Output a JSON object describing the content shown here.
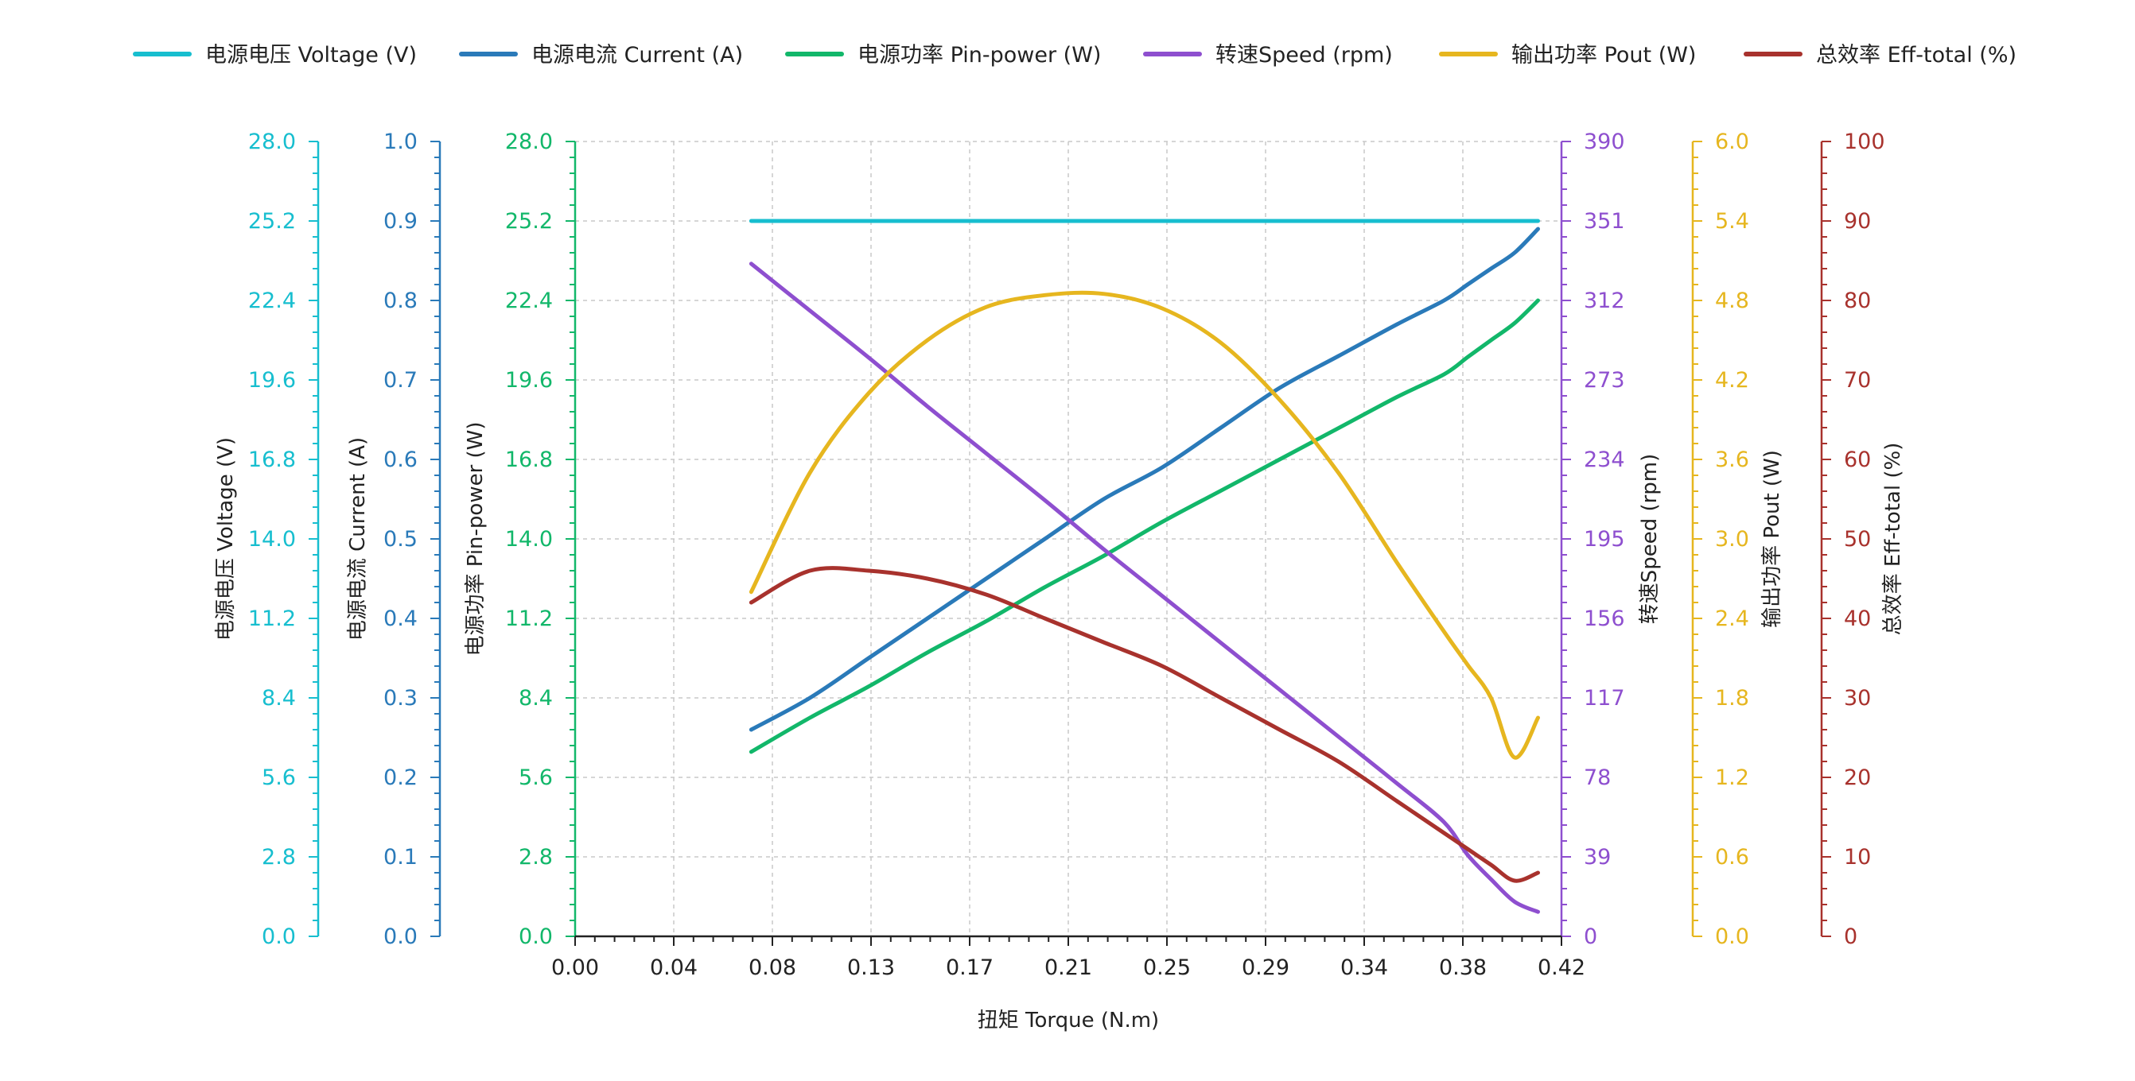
{
  "chart_data": {
    "type": "line",
    "xlabel": "扭矩 Torque (N.m)",
    "x_ticks": [
      "0.00",
      "0.04",
      "0.08",
      "0.13",
      "0.17",
      "0.21",
      "0.25",
      "0.29",
      "0.34",
      "0.38",
      "0.42"
    ],
    "xlim": [
      0,
      0.42
    ],
    "grid": true,
    "legend_position": "top",
    "x": [
      0.075,
      0.1,
      0.125,
      0.15,
      0.175,
      0.2,
      0.225,
      0.25,
      0.275,
      0.3,
      0.325,
      0.35,
      0.37,
      0.38,
      0.39,
      0.4,
      0.41
    ],
    "axes": [
      {
        "id": "voltage",
        "label": "电源电压 Voltage (V)",
        "color": "#17becf",
        "side": "left",
        "ticks": [
          "0.0",
          "2.8",
          "5.6",
          "8.4",
          "11.2",
          "14.0",
          "16.8",
          "19.6",
          "22.4",
          "25.2",
          "28.0"
        ],
        "ylim": [
          0,
          28
        ]
      },
      {
        "id": "current",
        "label": "电源电流 Current (A)",
        "color": "#2a7ab9",
        "side": "left",
        "ticks": [
          "0.0",
          "0.1",
          "0.2",
          "0.3",
          "0.4",
          "0.5",
          "0.6",
          "0.7",
          "0.8",
          "0.9",
          "1.0"
        ],
        "ylim": [
          0,
          1
        ]
      },
      {
        "id": "pin",
        "label": "电源功率 Pin-power (W)",
        "color": "#12b76a",
        "side": "left",
        "ticks": [
          "0.0",
          "2.8",
          "5.6",
          "8.4",
          "11.2",
          "14.0",
          "16.8",
          "19.6",
          "22.4",
          "25.2",
          "28.0"
        ],
        "ylim": [
          0,
          28
        ]
      },
      {
        "id": "speed",
        "label": "转速Speed (rpm)",
        "color": "#8e4fcf",
        "side": "right",
        "ticks": [
          "0",
          "39",
          "78",
          "117",
          "156",
          "195",
          "234",
          "273",
          "312",
          "351",
          "390"
        ],
        "ylim": [
          0,
          390
        ]
      },
      {
        "id": "pout",
        "label": "输出功率 Pout (W)",
        "color": "#e6b61f",
        "side": "right",
        "ticks": [
          "0.0",
          "0.6",
          "1.2",
          "1.8",
          "2.4",
          "3.0",
          "3.6",
          "4.2",
          "4.8",
          "5.4",
          "6.0"
        ],
        "ylim": [
          0,
          6
        ]
      },
      {
        "id": "eff",
        "label": "总效率 Eff-total (%)",
        "color": "#a8322d",
        "side": "right",
        "ticks": [
          "0",
          "10",
          "20",
          "30",
          "40",
          "50",
          "60",
          "70",
          "80",
          "90",
          "100"
        ],
        "ylim": [
          0,
          100
        ]
      }
    ],
    "series": [
      {
        "name": "电源电压 Voltage (V)",
        "axis": "voltage",
        "color": "#17becf",
        "values": [
          25.2,
          25.2,
          25.2,
          25.2,
          25.2,
          25.2,
          25.2,
          25.2,
          25.2,
          25.2,
          25.2,
          25.2,
          25.2,
          25.2,
          25.2,
          25.2,
          25.2
        ]
      },
      {
        "name": "电源电流 Current (A)",
        "axis": "current",
        "color": "#2a7ab9",
        "values": [
          0.26,
          0.3,
          0.35,
          0.4,
          0.45,
          0.5,
          0.55,
          0.59,
          0.64,
          0.69,
          0.73,
          0.77,
          0.8,
          0.82,
          0.84,
          0.86,
          0.89
        ]
      },
      {
        "name": "电源功率 Pin-power (W)",
        "axis": "pin",
        "color": "#12b76a",
        "values": [
          6.5,
          7.7,
          8.8,
          10.0,
          11.1,
          12.3,
          13.4,
          14.6,
          15.7,
          16.8,
          17.9,
          19.0,
          19.8,
          20.4,
          21.0,
          21.6,
          22.4
        ]
      },
      {
        "name": "转速Speed (rpm)",
        "axis": "speed",
        "color": "#8e4fcf",
        "values": [
          330,
          307,
          284,
          260,
          237,
          214,
          190,
          167,
          144,
          121,
          98,
          75,
          56,
          40,
          28,
          17,
          12
        ]
      },
      {
        "name": "输出功率 Pout (W)",
        "axis": "pout",
        "color": "#e6b61f",
        "values": [
          2.6,
          3.5,
          4.1,
          4.5,
          4.75,
          4.84,
          4.85,
          4.74,
          4.48,
          4.05,
          3.5,
          2.82,
          2.3,
          2.05,
          1.8,
          1.35,
          1.65
        ]
      },
      {
        "name": "总效率 Eff-total (%)",
        "axis": "eff",
        "color": "#a8322d",
        "values": [
          42,
          46,
          46,
          45,
          43,
          40,
          37,
          34,
          30,
          26,
          22,
          17,
          13,
          11,
          9,
          7,
          8
        ]
      }
    ]
  }
}
